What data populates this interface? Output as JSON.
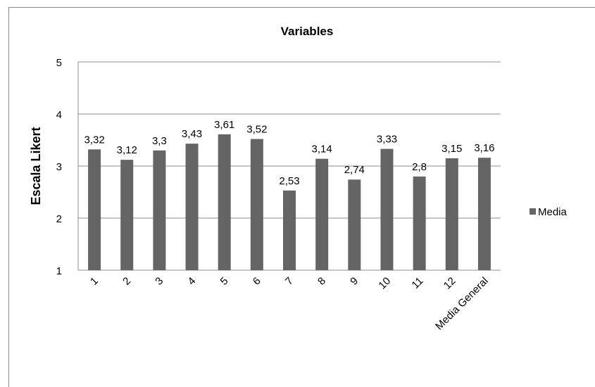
{
  "chart_data": {
    "type": "bar",
    "title": "Variables",
    "xlabel": "",
    "ylabel": "Escala Likert",
    "ylim": [
      1,
      5
    ],
    "yticks": [
      1,
      2,
      3,
      4,
      5
    ],
    "grid": true,
    "legend_position": "right",
    "categories": [
      "1",
      "2",
      "3",
      "4",
      "5",
      "6",
      "7",
      "8",
      "9",
      "10",
      "11",
      "12",
      "Media General"
    ],
    "series": [
      {
        "name": "Media",
        "color": "#646464",
        "values": [
          3.32,
          3.12,
          3.3,
          3.43,
          3.61,
          3.52,
          2.53,
          3.14,
          2.74,
          3.33,
          2.8,
          3.15,
          3.16
        ],
        "labels": [
          "3,32",
          "3,12",
          "3,3",
          "3,43",
          "3,61",
          "3,52",
          "2,53",
          "3,14",
          "2,74",
          "3,33",
          "2,8",
          "3,15",
          "3,16"
        ]
      }
    ]
  }
}
